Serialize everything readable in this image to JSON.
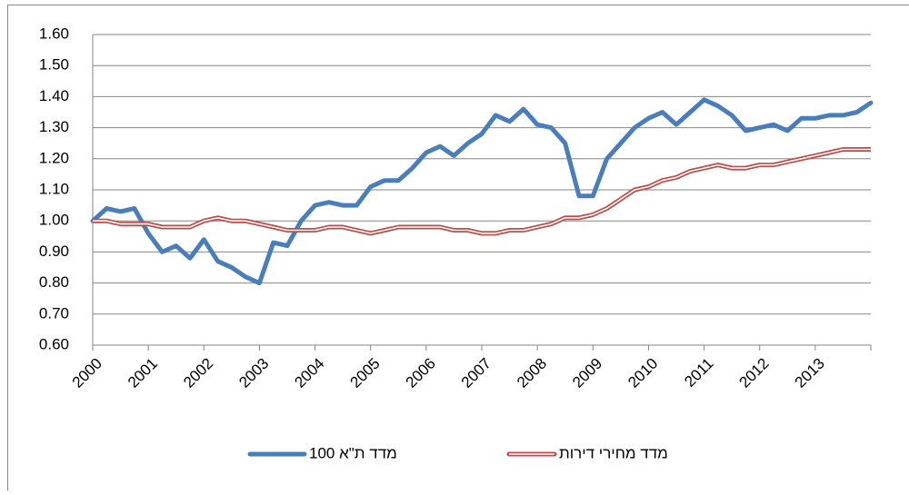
{
  "chart_data": {
    "type": "line",
    "categories": [
      "2000",
      null,
      null,
      null,
      "2001",
      null,
      null,
      null,
      "2002",
      null,
      null,
      null,
      "2003",
      null,
      null,
      null,
      "2004",
      null,
      null,
      null,
      "2005",
      null,
      null,
      null,
      "2006",
      null,
      null,
      null,
      "2007",
      null,
      null,
      null,
      "2008",
      null,
      null,
      null,
      "2009",
      null,
      null,
      null,
      "2010",
      null,
      null,
      null,
      "2011",
      null,
      null,
      null,
      "2012",
      null,
      null,
      null,
      "2013",
      null,
      null,
      null,
      null
    ],
    "series": [
      {
        "name": "מדד ת\"א 100",
        "color": "#4a7ebb",
        "values": [
          1.0,
          1.04,
          1.03,
          1.04,
          0.96,
          0.9,
          0.92,
          0.88,
          0.94,
          0.87,
          0.85,
          0.82,
          0.8,
          0.93,
          0.92,
          1.0,
          1.05,
          1.06,
          1.05,
          1.05,
          1.11,
          1.13,
          1.13,
          1.17,
          1.22,
          1.24,
          1.21,
          1.25,
          1.28,
          1.34,
          1.32,
          1.36,
          1.31,
          1.3,
          1.25,
          1.08,
          1.08,
          1.2,
          1.25,
          1.3,
          1.33,
          1.35,
          1.31,
          1.35,
          1.39,
          1.37,
          1.34,
          1.29,
          1.3,
          1.31,
          1.29,
          1.33,
          1.33,
          1.34,
          1.34,
          1.35,
          1.38
        ]
      },
      {
        "name": "מדד מחירי דירות",
        "color": "#be4b48",
        "values": [
          1.0,
          1.0,
          0.99,
          0.99,
          0.99,
          0.98,
          0.98,
          0.98,
          1.0,
          1.01,
          1.0,
          1.0,
          0.99,
          0.98,
          0.97,
          0.97,
          0.97,
          0.98,
          0.98,
          0.97,
          0.96,
          0.97,
          0.98,
          0.98,
          0.98,
          0.98,
          0.97,
          0.97,
          0.96,
          0.96,
          0.97,
          0.97,
          0.98,
          0.99,
          1.01,
          1.01,
          1.02,
          1.04,
          1.07,
          1.1,
          1.11,
          1.13,
          1.14,
          1.16,
          1.17,
          1.18,
          1.17,
          1.17,
          1.18,
          1.18,
          1.19,
          1.2,
          1.21,
          1.22,
          1.23,
          1.23,
          1.23
        ]
      }
    ],
    "ylim": [
      0.6,
      1.6
    ],
    "yticks": [
      {
        "value": 0.6,
        "label": "0.60"
      },
      {
        "value": 0.7,
        "label": "0.70"
      },
      {
        "value": 0.8,
        "label": "0.80"
      },
      {
        "value": 0.9,
        "label": "0.90"
      },
      {
        "value": 1.0,
        "label": "1.00"
      },
      {
        "value": 1.1,
        "label": "1.10"
      },
      {
        "value": 1.2,
        "label": "1.20"
      },
      {
        "value": 1.3,
        "label": "1.30"
      },
      {
        "value": 1.4,
        "label": "1.40"
      },
      {
        "value": 1.5,
        "label": "1.50"
      },
      {
        "value": 1.6,
        "label": "1.60"
      }
    ],
    "grid": true,
    "legend": "bottom"
  }
}
